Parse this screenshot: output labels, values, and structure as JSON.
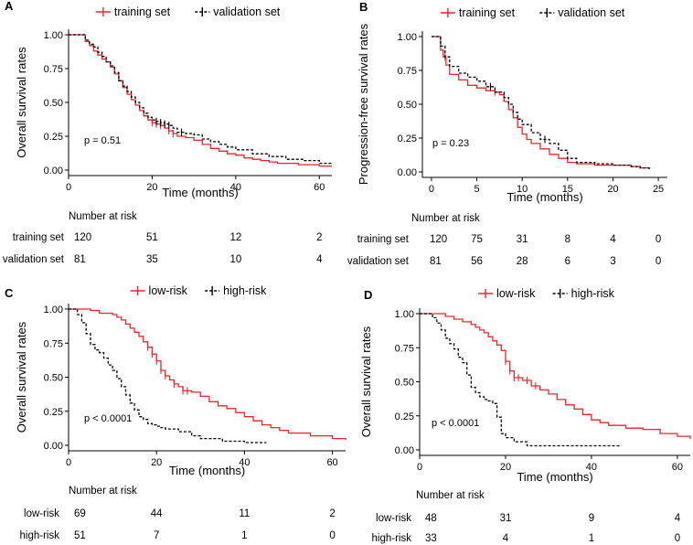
{
  "colors": {
    "series1": "#e8262a",
    "series2": "#000000",
    "axis": "#000000"
  },
  "chart_data": [
    {
      "panel": "A",
      "type": "line",
      "subtype": "kaplan-meier",
      "xlabel": "Time (months)",
      "ylabel": "Overall survival rates",
      "xlim": [
        0,
        63
      ],
      "ylim": [
        0,
        1
      ],
      "xticks": [
        0,
        20,
        40,
        60
      ],
      "yticks": [
        "0.00",
        "0.25",
        "0.50",
        "0.75",
        "1.00"
      ],
      "legend_position": "top",
      "pvalue": "p = 0.51",
      "series": [
        {
          "name": "training set",
          "style": "solid",
          "x": [
            0,
            2,
            4,
            5,
            6,
            7,
            8,
            9,
            10,
            11,
            12,
            13,
            14,
            15,
            16,
            17,
            18,
            19,
            20,
            21,
            22,
            23,
            24,
            25,
            26,
            28,
            30,
            32,
            34,
            36,
            38,
            40,
            42,
            44,
            46,
            48,
            50,
            55,
            60,
            63
          ],
          "y": [
            1,
            1,
            0.95,
            0.92,
            0.88,
            0.85,
            0.82,
            0.8,
            0.76,
            0.71,
            0.66,
            0.61,
            0.56,
            0.52,
            0.48,
            0.44,
            0.4,
            0.37,
            0.35,
            0.34,
            0.33,
            0.31,
            0.29,
            0.27,
            0.25,
            0.24,
            0.22,
            0.19,
            0.16,
            0.14,
            0.12,
            0.11,
            0.09,
            0.08,
            0.07,
            0.06,
            0.05,
            0.04,
            0.03,
            0.03
          ],
          "censor_x": [
            20,
            21,
            22,
            24,
            25
          ]
        },
        {
          "name": "validation set",
          "style": "dashed",
          "x": [
            0,
            3,
            4,
            5,
            6,
            7,
            8,
            9,
            10,
            11,
            12,
            13,
            14,
            15,
            16,
            17,
            18,
            19,
            20,
            21,
            22,
            23,
            24,
            25,
            26,
            28,
            30,
            32,
            34,
            36,
            38,
            40,
            44,
            48,
            52,
            56,
            60,
            63
          ],
          "y": [
            1,
            1,
            0.96,
            0.93,
            0.91,
            0.87,
            0.84,
            0.8,
            0.77,
            0.72,
            0.66,
            0.62,
            0.58,
            0.54,
            0.5,
            0.46,
            0.42,
            0.39,
            0.37,
            0.36,
            0.35,
            0.34,
            0.33,
            0.31,
            0.28,
            0.27,
            0.26,
            0.23,
            0.21,
            0.19,
            0.17,
            0.15,
            0.12,
            0.1,
            0.08,
            0.07,
            0.05,
            0.05
          ],
          "censor_x": [
            21,
            22,
            23,
            24,
            27
          ]
        }
      ],
      "risk_table": {
        "title": "Number at risk",
        "time_points": [
          0,
          20,
          40,
          60
        ],
        "rows": [
          {
            "label": "training set",
            "values": [
              "120",
              "51",
              "12",
              "2"
            ]
          },
          {
            "label": "validation set",
            "values": [
              "81",
              "35",
              "10",
              "4"
            ]
          }
        ]
      }
    },
    {
      "panel": "B",
      "type": "line",
      "subtype": "kaplan-meier",
      "xlabel": "Time (months)",
      "ylabel": "Progression-free survival rates",
      "xlim": [
        -1,
        26
      ],
      "ylim": [
        0,
        1
      ],
      "xticks": [
        0,
        5,
        10,
        15,
        20,
        25
      ],
      "yticks": [
        "0.00",
        "0.25",
        "0.50",
        "0.75",
        "1.00"
      ],
      "legend_position": "top",
      "pvalue": "p = 0.23",
      "series": [
        {
          "name": "training set",
          "style": "solid",
          "x": [
            0,
            0.8,
            1,
            1.3,
            1.6,
            2,
            3,
            4,
            5,
            6,
            7,
            7.5,
            8,
            8.5,
            9,
            9.5,
            10,
            10.5,
            11,
            12,
            13,
            14,
            15,
            16,
            17,
            18,
            20,
            22,
            23,
            24
          ],
          "y": [
            1,
            1,
            0.9,
            0.85,
            0.79,
            0.72,
            0.68,
            0.64,
            0.62,
            0.6,
            0.59,
            0.57,
            0.52,
            0.46,
            0.4,
            0.33,
            0.28,
            0.24,
            0.21,
            0.17,
            0.13,
            0.1,
            0.07,
            0.06,
            0.06,
            0.05,
            0.05,
            0.04,
            0.03,
            0.02
          ],
          "censor_x": [
            1.5,
            7
          ]
        },
        {
          "name": "validation set",
          "style": "dashed",
          "x": [
            0,
            1,
            1.5,
            2,
            3,
            4,
            5,
            6,
            7,
            8,
            8.5,
            9,
            9.5,
            10,
            11,
            12,
            13,
            14,
            15,
            16,
            18,
            20,
            22,
            23,
            24
          ],
          "y": [
            1,
            0.93,
            0.85,
            0.78,
            0.73,
            0.7,
            0.67,
            0.63,
            0.59,
            0.55,
            0.5,
            0.44,
            0.39,
            0.35,
            0.29,
            0.24,
            0.21,
            0.16,
            0.1,
            0.07,
            0.06,
            0.05,
            0.04,
            0.03,
            0.02
          ],
          "censor_x": [
            6.5,
            12.5
          ]
        }
      ],
      "risk_table": {
        "title": "Number at risk",
        "time_points": [
          0,
          5,
          10,
          15,
          20,
          25
        ],
        "rows": [
          {
            "label": "training set",
            "values": [
              "120",
              "75",
              "31",
              "8",
              "4",
              "0"
            ]
          },
          {
            "label": "validation set",
            "values": [
              "81",
              "56",
              "28",
              "6",
              "3",
              "0"
            ]
          }
        ]
      }
    },
    {
      "panel": "C",
      "type": "line",
      "subtype": "kaplan-meier",
      "xlabel": "Time (months)",
      "ylabel": "Overall survival rates",
      "xlim": [
        0,
        63
      ],
      "ylim": [
        0,
        1
      ],
      "xticks": [
        0,
        20,
        40,
        60
      ],
      "yticks": [
        "0.00",
        "0.25",
        "0.50",
        "0.75",
        "1.00"
      ],
      "legend_position": "top",
      "pvalue": "p < 0.0001",
      "series": [
        {
          "name": "low-risk",
          "style": "solid",
          "x": [
            0,
            3,
            5,
            7,
            9,
            10,
            11,
            12,
            13,
            14,
            15,
            16,
            17,
            18,
            19,
            20,
            21,
            22,
            23,
            24,
            25,
            26,
            28,
            30,
            32,
            34,
            36,
            38,
            40,
            42,
            44,
            46,
            48,
            50,
            55,
            60,
            63
          ],
          "y": [
            1,
            1,
            0.99,
            0.97,
            0.97,
            0.96,
            0.94,
            0.92,
            0.89,
            0.86,
            0.83,
            0.8,
            0.76,
            0.72,
            0.67,
            0.62,
            0.55,
            0.51,
            0.48,
            0.45,
            0.43,
            0.4,
            0.39,
            0.36,
            0.32,
            0.29,
            0.27,
            0.24,
            0.21,
            0.18,
            0.15,
            0.13,
            0.11,
            0.09,
            0.07,
            0.05,
            0.04
          ],
          "censor_x": [
            18,
            19,
            20,
            21,
            22,
            24,
            26,
            27
          ]
        },
        {
          "name": "high-risk",
          "style": "dashed",
          "x": [
            0,
            2,
            3,
            4,
            5,
            6,
            7,
            8,
            9,
            10,
            11,
            12,
            13,
            14,
            15,
            16,
            17,
            18,
            19,
            20,
            21,
            22,
            25,
            28,
            30,
            35,
            40,
            45
          ],
          "y": [
            1,
            0.96,
            0.9,
            0.82,
            0.74,
            0.7,
            0.68,
            0.64,
            0.59,
            0.55,
            0.49,
            0.43,
            0.37,
            0.31,
            0.26,
            0.21,
            0.19,
            0.16,
            0.15,
            0.14,
            0.13,
            0.12,
            0.1,
            0.07,
            0.05,
            0.03,
            0.02,
            0.02
          ],
          "censor_x": []
        }
      ],
      "risk_table": {
        "title": "Number at risk",
        "time_points": [
          0,
          20,
          40,
          60
        ],
        "rows": [
          {
            "label": "low-risk",
            "values": [
              "69",
              "44",
              "11",
              "2"
            ]
          },
          {
            "label": "high-risk",
            "values": [
              "51",
              "7",
              "1",
              "0"
            ]
          }
        ]
      }
    },
    {
      "panel": "D",
      "type": "line",
      "subtype": "kaplan-meier",
      "xlabel": "Time (months)",
      "ylabel": "Overall survival rates",
      "xlim": [
        0,
        63
      ],
      "ylim": [
        0,
        1
      ],
      "xticks": [
        0,
        20,
        40,
        60
      ],
      "yticks": [
        "0.00",
        "0.25",
        "0.50",
        "0.75",
        "1.00"
      ],
      "legend_position": "top",
      "pvalue": "p < 0.0001",
      "series": [
        {
          "name": "low-risk",
          "style": "solid",
          "x": [
            0,
            4,
            6,
            8,
            10,
            12,
            13,
            14,
            15,
            16,
            17,
            18,
            19,
            20,
            21,
            22,
            24,
            26,
            28,
            30,
            32,
            34,
            36,
            38,
            40,
            42,
            44,
            48,
            52,
            56,
            60,
            63
          ],
          "y": [
            1,
            1,
            0.98,
            0.96,
            0.94,
            0.92,
            0.9,
            0.88,
            0.86,
            0.83,
            0.8,
            0.77,
            0.73,
            0.65,
            0.58,
            0.53,
            0.51,
            0.47,
            0.44,
            0.41,
            0.37,
            0.33,
            0.3,
            0.26,
            0.22,
            0.2,
            0.18,
            0.16,
            0.15,
            0.12,
            0.1,
            0.08
          ],
          "censor_x": [
            20,
            21,
            22,
            23,
            25,
            27
          ]
        },
        {
          "name": "high-risk",
          "style": "dashed",
          "x": [
            0,
            3,
            4,
            5,
            6,
            7,
            8,
            9,
            10,
            11,
            12,
            13,
            14,
            15,
            16,
            17,
            18,
            19,
            20,
            21,
            22,
            25,
            28,
            30,
            35,
            40,
            45,
            47
          ],
          "y": [
            1,
            0.97,
            0.93,
            0.88,
            0.82,
            0.78,
            0.74,
            0.68,
            0.64,
            0.55,
            0.46,
            0.42,
            0.39,
            0.37,
            0.36,
            0.34,
            0.24,
            0.12,
            0.09,
            0.09,
            0.06,
            0.03,
            0.03,
            0.03,
            0.03,
            0.03,
            0.03,
            0.03
          ],
          "censor_x": []
        }
      ],
      "risk_table": {
        "title": "Number at risk",
        "time_points": [
          0,
          20,
          40,
          60
        ],
        "rows": [
          {
            "label": "low-risk",
            "values": [
              "48",
              "31",
              "9",
              "4"
            ]
          },
          {
            "label": "high-risk",
            "values": [
              "33",
              "4",
              "1",
              "0"
            ]
          }
        ]
      }
    }
  ]
}
